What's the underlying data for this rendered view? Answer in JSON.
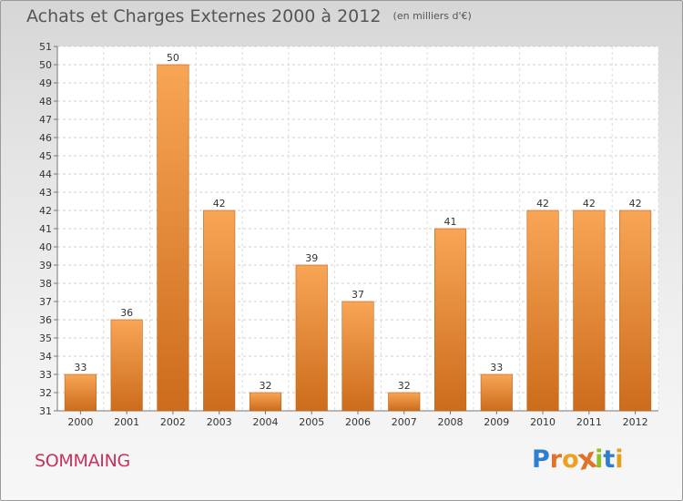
{
  "chart_data": {
    "type": "bar",
    "title": "Achats et Charges Externes 2000 à 2012",
    "subtitle": "(en milliers d'€)",
    "categories": [
      "2000",
      "2001",
      "2002",
      "2003",
      "2004",
      "2005",
      "2006",
      "2007",
      "2008",
      "2009",
      "2010",
      "2011",
      "2012"
    ],
    "values": [
      33,
      36,
      50,
      42,
      32,
      39,
      37,
      32,
      41,
      33,
      42,
      42,
      42
    ],
    "ylim": [
      31,
      51
    ],
    "yticks": [
      31,
      32,
      33,
      34,
      35,
      36,
      37,
      38,
      39,
      40,
      41,
      42,
      43,
      44,
      45,
      46,
      47,
      48,
      49,
      50,
      51
    ],
    "grid": true,
    "xlabel": "",
    "ylabel": "",
    "bar_color": "#e8883a"
  },
  "footer": {
    "commune": "SOMMAING",
    "brand": "Proxiti"
  },
  "colors": {
    "commune": "#c8325a",
    "brand_letters": [
      "#2f7fd0",
      "#e0722a",
      "#f0a020",
      "#e0722a",
      "#8fbf2a",
      "#2f7fd0",
      "#e0a020"
    ]
  }
}
